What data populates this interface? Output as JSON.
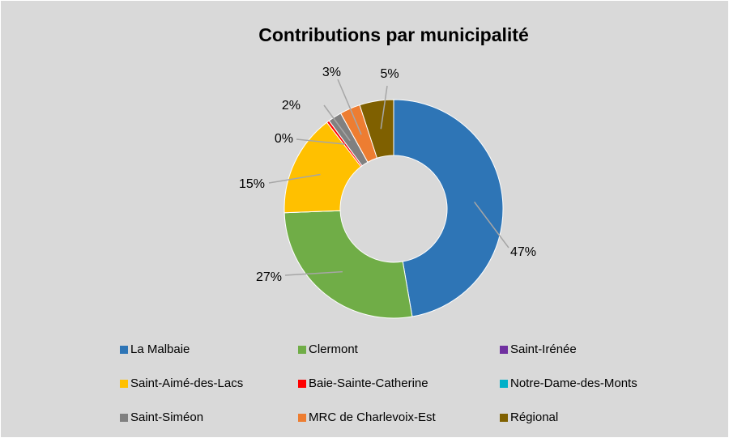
{
  "chart_data": {
    "type": "donut",
    "title": "Contributions par municipalité",
    "categories": [
      "La Malbaie",
      "Clermont",
      "Saint-Irénée",
      "Saint-Aimé-des-Lacs",
      "Baie-Sainte-Catherine",
      "Notre-Dame-des-Monts",
      "Saint-Siméon",
      "MRC de Charlevoix-Est",
      "Régional"
    ],
    "values": [
      47,
      27,
      0,
      15,
      0.4,
      0,
      2,
      3,
      5
    ],
    "value_labels": [
      "47%",
      "27%",
      null,
      "15%",
      "0%",
      null,
      "2%",
      "3%",
      "5%"
    ],
    "colors": [
      "#2e75b6",
      "#70ad47",
      "#7030a0",
      "#ffc000",
      "#ff0000",
      "#00b0c8",
      "#808080",
      "#ed7d31",
      "#7f6000"
    ],
    "legend": "bottom"
  }
}
